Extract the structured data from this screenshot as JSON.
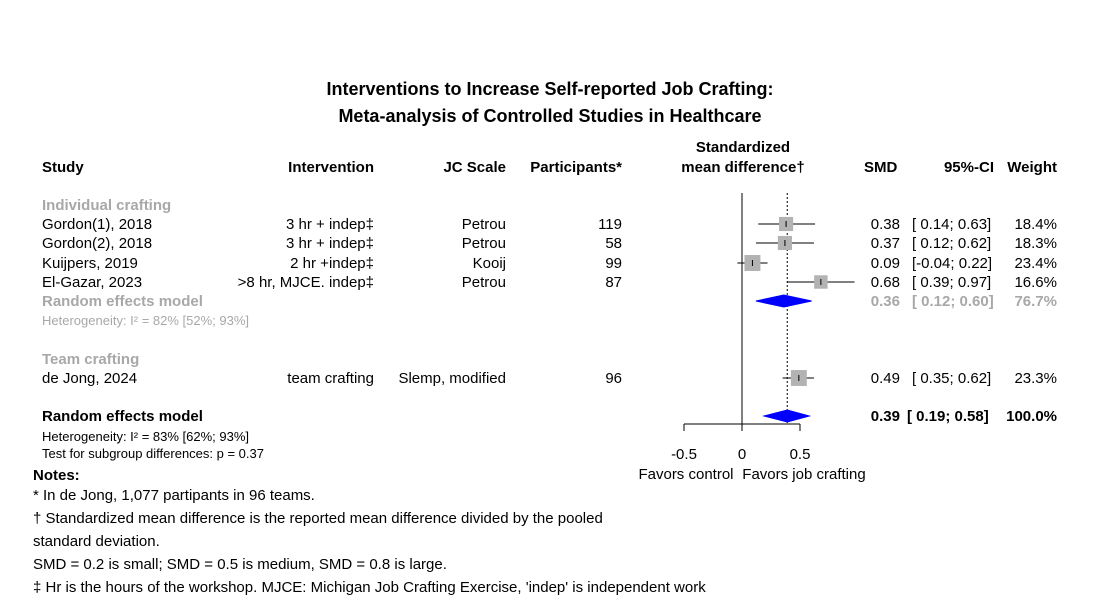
{
  "title_line1": "Interventions to Increase Self-reported Job Crafting:",
  "title_line2": "Meta-analysis of Controlled Studies in Healthcare",
  "headers": {
    "study": "Study",
    "intervention": "Intervention",
    "jc_scale": "JC Scale",
    "participants": "Participants*",
    "smd_plot_line1": "Standardized",
    "smd_plot_line2": "mean difference†",
    "smd": "SMD",
    "ci": "95%-CI",
    "weight": "Weight"
  },
  "groups": [
    {
      "label": "Individual crafting",
      "studies": [
        {
          "study": "Gordon(1), 2018",
          "intervention": "3 hr + indep‡",
          "scale": "Petrou",
          "participants": "119",
          "smd": "0.38",
          "ci": "[ 0.14; 0.63]",
          "weight": "18.4%"
        },
        {
          "study": "Gordon(2), 2018",
          "intervention": "3 hr + indep‡",
          "scale": "Petrou",
          "participants": "58",
          "smd": "0.37",
          "ci": "[ 0.12; 0.62]",
          "weight": "18.3%"
        },
        {
          "study": "Kuijpers, 2019",
          "intervention": "2 hr +indep‡",
          "scale": "Kooij",
          "participants": "99",
          "smd": "0.09",
          "ci": "[-0.04; 0.22]",
          "weight": "23.4%"
        },
        {
          "study": "El-Gazar, 2023",
          "intervention": ">8 hr, MJCE. indep‡",
          "scale": "Petrou",
          "participants": "87",
          "smd": "0.68",
          "ci": "[ 0.39; 0.97]",
          "weight": "16.6%"
        }
      ],
      "model": {
        "label": "Random effects model",
        "smd": "0.36",
        "ci": "[ 0.12; 0.60]",
        "weight": "76.7%"
      },
      "heterogeneity": "Heterogeneity: I² = 82% [52%; 93%]"
    },
    {
      "label": "Team crafting",
      "studies": [
        {
          "study": "de Jong, 2024",
          "intervention": "team crafting",
          "scale": "Slemp, modified",
          "participants": "96",
          "smd": "0.49",
          "ci": "[ 0.35; 0.62]",
          "weight": "23.3%"
        }
      ]
    }
  ],
  "overall": {
    "label": "Random effects model",
    "smd": "0.39",
    "ci": "[ 0.19; 0.58]",
    "weight": "100.0%",
    "heterogeneity": "Heterogeneity: I² = 83% [62%; 93%]",
    "subgroup_test": "Test for subgroup differences:  p = 0.37"
  },
  "axis": {
    "ticks": [
      "-0.5",
      "0",
      "0.5"
    ],
    "label_left": "Favors control",
    "label_right": "Favors job crafting"
  },
  "notes": {
    "heading": "Notes:",
    "lines": [
      "* In de Jong, 1,077 partipants in 96 teams.",
      "† Standardized mean difference is the reported mean difference divided by the pooled",
      "standard deviation.",
      "SMD = 0.2 is small; SMD = 0.5 is medium, SMD = 0.8 is large.",
      "‡ Hr is the hours of the workshop. MJCE: Michigan Job Crafting Exercise, 'indep' is independent work"
    ]
  },
  "colors": {
    "square": "#b3b3b3",
    "diamond": "#0000ff",
    "gray_text": "#a8a8a8"
  },
  "chart_data": {
    "type": "forest",
    "title": "Interventions to Increase Self-reported Job Crafting: Meta-analysis of Controlled Studies in Healthcare",
    "xlabel": "Standardized mean difference",
    "xlim": [
      -0.5,
      0.5
    ],
    "reference_line": 0,
    "overall_line": 0.39,
    "points": [
      {
        "study": "Gordon(1), 2018",
        "smd": 0.38,
        "lower": 0.14,
        "upper": 0.63,
        "weight": 18.4
      },
      {
        "study": "Gordon(2), 2018",
        "smd": 0.37,
        "lower": 0.12,
        "upper": 0.62,
        "weight": 18.3
      },
      {
        "study": "Kuijpers, 2019",
        "smd": 0.09,
        "lower": -0.04,
        "upper": 0.22,
        "weight": 23.4
      },
      {
        "study": "El-Gazar, 2023",
        "smd": 0.68,
        "lower": 0.39,
        "upper": 0.97,
        "weight": 16.6
      },
      {
        "study": "de Jong, 2024",
        "smd": 0.49,
        "lower": 0.35,
        "upper": 0.62,
        "weight": 23.3
      }
    ],
    "diamonds": [
      {
        "label": "Individual crafting random effects model",
        "smd": 0.36,
        "lower": 0.12,
        "upper": 0.6
      },
      {
        "label": "Overall random effects model",
        "smd": 0.39,
        "lower": 0.19,
        "upper": 0.58
      }
    ]
  }
}
